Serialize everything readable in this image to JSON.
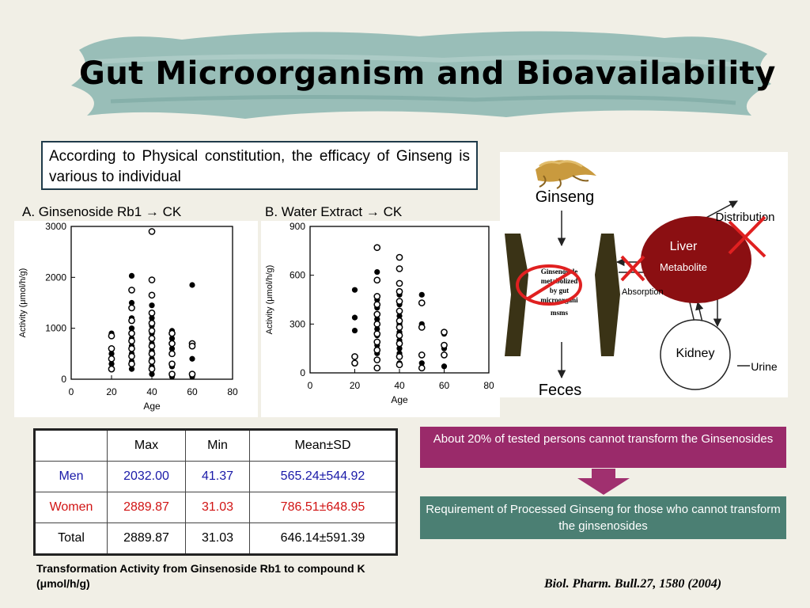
{
  "title": "Gut Microorganism and Bioavailability",
  "intro": "According to Physical constitution, the efficacy of Ginseng is various to individual",
  "panels": {
    "a_label": "A. Ginsenoside Rb1 → CK",
    "b_label": "B. Water Extract → CK"
  },
  "chart_data": [
    {
      "type": "scatter",
      "title": "A. Ginsenoside Rb1 → CK",
      "xlabel": "Age",
      "ylabel": "Activity (μmol/h/g)",
      "xlim": [
        0,
        80
      ],
      "ylim": [
        0,
        3000
      ],
      "xticks": [
        0,
        20,
        40,
        60,
        80
      ],
      "yticks": [
        0,
        1000,
        2000,
        3000
      ],
      "series": [
        {
          "marker": "filled",
          "points": [
            [
              20,
              900
            ],
            [
              20,
              500
            ],
            [
              20,
              300
            ],
            [
              30,
              2030
            ],
            [
              30,
              1750
            ],
            [
              30,
              1500
            ],
            [
              30,
              1200
            ],
            [
              30,
              1000
            ],
            [
              30,
              800
            ],
            [
              30,
              650
            ],
            [
              30,
              500
            ],
            [
              30,
              350
            ],
            [
              30,
              200
            ],
            [
              40,
              1450
            ],
            [
              40,
              1200
            ],
            [
              40,
              1050
            ],
            [
              40,
              900
            ],
            [
              40,
              700
            ],
            [
              40,
              550
            ],
            [
              40,
              400
            ],
            [
              40,
              250
            ],
            [
              40,
              100
            ],
            [
              50,
              950
            ],
            [
              50,
              800
            ],
            [
              50,
              600
            ],
            [
              50,
              250
            ],
            [
              50,
              50
            ],
            [
              60,
              1850
            ],
            [
              60,
              400
            ],
            [
              60,
              50
            ]
          ]
        },
        {
          "marker": "open",
          "points": [
            [
              20,
              850
            ],
            [
              20,
              600
            ],
            [
              20,
              400
            ],
            [
              20,
              200
            ],
            [
              30,
              1750
            ],
            [
              30,
              1400
            ],
            [
              30,
              1150
            ],
            [
              30,
              900
            ],
            [
              30,
              750
            ],
            [
              30,
              600
            ],
            [
              30,
              450
            ],
            [
              30,
              300
            ],
            [
              40,
              2900
            ],
            [
              40,
              1950
            ],
            [
              40,
              1650
            ],
            [
              40,
              1300
            ],
            [
              40,
              1100
            ],
            [
              40,
              950
            ],
            [
              40,
              800
            ],
            [
              40,
              650
            ],
            [
              40,
              500
            ],
            [
              40,
              350
            ],
            [
              40,
              200
            ],
            [
              50,
              900
            ],
            [
              50,
              700
            ],
            [
              50,
              500
            ],
            [
              50,
              300
            ],
            [
              50,
              100
            ],
            [
              60,
              700
            ],
            [
              60,
              650
            ],
            [
              60,
              100
            ]
          ]
        }
      ]
    },
    {
      "type": "scatter",
      "title": "B. Water Extract → CK",
      "xlabel": "Age",
      "ylabel": "Activity (μmol/h/g)",
      "xlim": [
        0,
        80
      ],
      "ylim": [
        0,
        900
      ],
      "xticks": [
        0,
        20,
        40,
        60,
        80
      ],
      "yticks": [
        0,
        300,
        600,
        900
      ],
      "series": [
        {
          "marker": "filled",
          "points": [
            [
              20,
              510
            ],
            [
              20,
              340
            ],
            [
              20,
              260
            ],
            [
              30,
              620
            ],
            [
              30,
              450
            ],
            [
              30,
              400
            ],
            [
              30,
              330
            ],
            [
              30,
              270
            ],
            [
              30,
              230
            ],
            [
              30,
              170
            ],
            [
              30,
              120
            ],
            [
              40,
              480
            ],
            [
              40,
              420
            ],
            [
              40,
              350
            ],
            [
              40,
              300
            ],
            [
              40,
              250
            ],
            [
              40,
              200
            ],
            [
              40,
              150
            ],
            [
              40,
              120
            ],
            [
              40,
              60
            ],
            [
              50,
              480
            ],
            [
              50,
              300
            ],
            [
              50,
              60
            ],
            [
              60,
              240
            ],
            [
              60,
              150
            ],
            [
              60,
              40
            ]
          ]
        },
        {
          "marker": "open",
          "points": [
            [
              20,
              100
            ],
            [
              20,
              60
            ],
            [
              30,
              770
            ],
            [
              30,
              570
            ],
            [
              30,
              470
            ],
            [
              30,
              420
            ],
            [
              30,
              360
            ],
            [
              30,
              300
            ],
            [
              30,
              240
            ],
            [
              30,
              190
            ],
            [
              30,
              140
            ],
            [
              30,
              80
            ],
            [
              30,
              30
            ],
            [
              40,
              710
            ],
            [
              40,
              640
            ],
            [
              40,
              550
            ],
            [
              40,
              500
            ],
            [
              40,
              440
            ],
            [
              40,
              380
            ],
            [
              40,
              320
            ],
            [
              40,
              280
            ],
            [
              40,
              230
            ],
            [
              40,
              180
            ],
            [
              40,
              100
            ],
            [
              40,
              50
            ],
            [
              50,
              430
            ],
            [
              50,
              280
            ],
            [
              50,
              110
            ],
            [
              50,
              30
            ],
            [
              60,
              250
            ],
            [
              60,
              170
            ],
            [
              60,
              110
            ]
          ]
        }
      ]
    }
  ],
  "diagram": {
    "ginseng": "Ginseng",
    "distribution": "Distribution",
    "liver": "Liver",
    "metabolite": "Metabolite",
    "gut_text": [
      "Ginsenoside",
      "metabolized",
      "by gut",
      "microorgani",
      "msms"
    ],
    "absorption": "Absorption",
    "kidney": "Kidney",
    "urine": "Urine",
    "feces": "Feces",
    "colors": {
      "liver": "#8b0f12",
      "gut_wall": "#3a3316",
      "cross": "#e02020"
    }
  },
  "table": {
    "headers": [
      "",
      "Max",
      "Min",
      "Mean±SD"
    ],
    "rows": [
      {
        "group": "Men",
        "cells": [
          "Men",
          "2032.00",
          "41.37",
          "565.24±544.92"
        ]
      },
      {
        "group": "Women",
        "cells": [
          "Women",
          "2889.87",
          "31.03",
          "786.51±648.95"
        ]
      },
      {
        "group": "Total",
        "cells": [
          "Total",
          "2889.87",
          "31.03",
          "646.14±591.39"
        ]
      }
    ],
    "colors": {
      "men": "#1a1aa8",
      "women": "#d11414"
    }
  },
  "caption": "Transformation Activity from Ginsenoside Rb1 to compound K (μmol/h/g)",
  "note": "About 20% of tested persons cannot transform the Ginsenosides",
  "requirement": "Requirement of Processed Ginseng for those who cannot transform the ginsenosides",
  "citation": "Biol. Pharm. Bull.27, 1580 (2004)",
  "colors": {
    "title_brush": "#8fb8b2",
    "note_bg": "#9a2a6a",
    "requirement_bg": "#4b7f73",
    "arrow": "#a0306f"
  }
}
